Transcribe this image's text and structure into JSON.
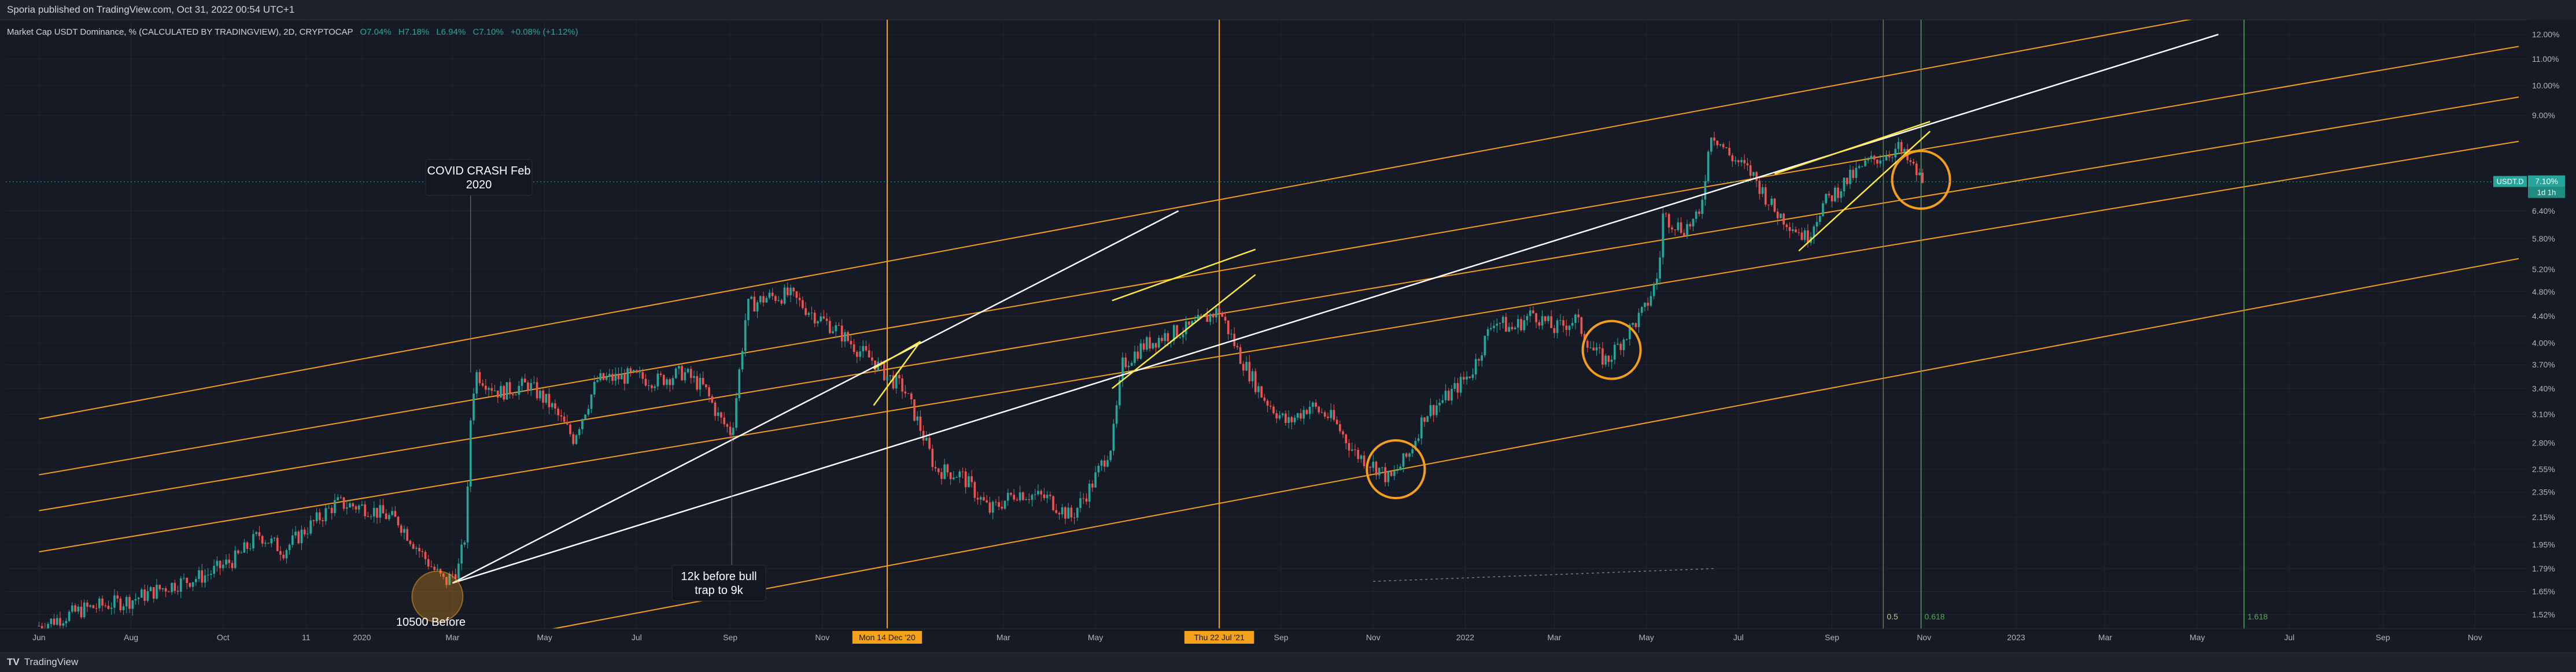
{
  "header": {
    "publisher_line": "Sporia published on TradingView.com, Oct 31, 2022 00:54 UTC+1"
  },
  "legend": {
    "symbol": "Market Cap USDT Dominance, % (CALCULATED BY TRADINGVIEW), 2D, CRYPTOCAP",
    "open": "O7.04%",
    "high": "H7.18%",
    "low": "L6.94%",
    "close": "C7.10%",
    "change": "+0.08% (+1.12%)"
  },
  "footer": {
    "logo_text": "TradingView"
  },
  "colors": {
    "background": "#161a25",
    "grid": "#21252f",
    "up": "#26a69a",
    "down": "#ef5350",
    "channel": "#f59e1b",
    "trendline": "#ffffff",
    "wedge": "#ffeb3b",
    "circle": "#f59e1b",
    "marker_vertical": "#f5a21a",
    "fib_line": "#4caf50",
    "fib_text": "#4caf50",
    "price_tag": "#26a69a"
  },
  "chart_data": {
    "type": "candlestick",
    "x_axis": {
      "labels": [
        "Jun",
        "Aug",
        "Oct",
        "11",
        "2020",
        "Mar",
        "May",
        "Jul",
        "Sep",
        "Nov",
        "Mar",
        "May",
        "Sep",
        "Nov",
        "2022",
        "Mar",
        "May",
        "Jul",
        "Sep",
        "Nov",
        "2023",
        "Mar",
        "May",
        "Jul",
        "Sep",
        "Nov"
      ],
      "highlighted": [
        "Mon 14 Dec '20",
        "Thu 22 Jul '21"
      ]
    },
    "y_axis": {
      "scale": "log",
      "unit": "%",
      "ticks": [
        1.52,
        1.65,
        1.79,
        1.95,
        2.15,
        2.35,
        2.55,
        2.8,
        3.1,
        3.4,
        3.7,
        4.0,
        4.4,
        4.8,
        5.2,
        5.8,
        6.4,
        9.0,
        10.0,
        11.0,
        12.0
      ],
      "tick_labels": [
        "1.52%",
        "1.65%",
        "1.79%",
        "1.95%",
        "2.15%",
        "2.35%",
        "2.55%",
        "2.80%",
        "3.10%",
        "3.40%",
        "3.70%",
        "4.00%",
        "4.40%",
        "4.80%",
        "5.20%",
        "5.80%",
        "6.40%",
        "9.00%",
        "10.00%",
        "11.00%",
        "12.00%"
      ]
    },
    "price_path": [
      [
        "2019-06-01",
        1.46
      ],
      [
        "2019-07-01",
        1.55
      ],
      [
        "2019-08-01",
        1.6
      ],
      [
        "2019-08-25",
        1.68
      ],
      [
        "2019-09-20",
        1.75
      ],
      [
        "2019-10-10",
        1.86
      ],
      [
        "2019-10-25",
        2.02
      ],
      [
        "2019-11-10",
        1.91
      ],
      [
        "2019-11-25",
        2.06
      ],
      [
        "2019-12-15",
        2.26
      ],
      [
        "2020-01-05",
        2.22
      ],
      [
        "2020-01-25",
        2.12
      ],
      [
        "2020-02-10",
        1.88
      ],
      [
        "2020-02-25",
        1.7
      ],
      [
        "2020-03-05",
        1.8
      ],
      [
        "2020-03-10",
        2.05
      ],
      [
        "2020-03-13",
        3.05
      ],
      [
        "2020-03-16",
        3.6
      ],
      [
        "2020-04-01",
        3.35
      ],
      [
        "2020-04-20",
        3.45
      ],
      [
        "2020-05-05",
        3.2
      ],
      [
        "2020-05-20",
        2.85
      ],
      [
        "2020-06-05",
        3.5
      ],
      [
        "2020-06-25",
        3.55
      ],
      [
        "2020-07-15",
        3.5
      ],
      [
        "2020-08-01",
        3.6
      ],
      [
        "2020-08-15",
        3.4
      ],
      [
        "2020-08-25",
        3.05
      ],
      [
        "2020-09-02",
        2.9
      ],
      [
        "2020-09-06",
        3.45
      ],
      [
        "2020-09-12",
        4.55
      ],
      [
        "2020-09-25",
        4.7
      ],
      [
        "2020-10-10",
        4.75
      ],
      [
        "2020-10-25",
        4.45
      ],
      [
        "2020-11-10",
        4.2
      ],
      [
        "2020-11-25",
        3.9
      ],
      [
        "2020-12-05",
        3.75
      ],
      [
        "2020-12-14",
        3.55
      ],
      [
        "2020-12-25",
        3.4
      ],
      [
        "2021-01-05",
        2.95
      ],
      [
        "2021-01-15",
        2.55
      ],
      [
        "2021-02-01",
        2.5
      ],
      [
        "2021-02-20",
        2.2
      ],
      [
        "2021-03-10",
        2.35
      ],
      [
        "2021-03-30",
        2.3
      ],
      [
        "2021-04-15",
        2.15
      ],
      [
        "2021-04-28",
        2.4
      ],
      [
        "2021-05-12",
        2.8
      ],
      [
        "2021-05-19",
        3.7
      ],
      [
        "2021-06-01",
        3.95
      ],
      [
        "2021-06-15",
        4.1
      ],
      [
        "2021-07-01",
        4.2
      ],
      [
        "2021-07-22",
        4.5
      ],
      [
        "2021-08-05",
        3.8
      ],
      [
        "2021-08-20",
        3.3
      ],
      [
        "2021-09-05",
        3.0
      ],
      [
        "2021-09-20",
        3.2
      ],
      [
        "2021-10-05",
        3.05
      ],
      [
        "2021-10-20",
        2.7
      ],
      [
        "2021-11-05",
        2.55
      ],
      [
        "2021-11-12",
        2.45
      ],
      [
        "2021-11-25",
        2.7
      ],
      [
        "2021-12-05",
        3.1
      ],
      [
        "2021-12-20",
        3.3
      ],
      [
        "2022-01-05",
        3.6
      ],
      [
        "2022-01-20",
        4.35
      ],
      [
        "2022-02-01",
        4.2
      ],
      [
        "2022-02-15",
        4.45
      ],
      [
        "2022-03-01",
        4.2
      ],
      [
        "2022-03-15",
        4.35
      ],
      [
        "2022-03-28",
        3.85
      ],
      [
        "2022-04-05",
        3.75
      ],
      [
        "2022-04-15",
        4.05
      ],
      [
        "2022-04-30",
        4.5
      ],
      [
        "2022-05-09",
        5.1
      ],
      [
        "2022-05-12",
        6.3
      ],
      [
        "2022-05-25",
        6.0
      ],
      [
        "2022-06-05",
        6.25
      ],
      [
        "2022-06-13",
        8.5
      ],
      [
        "2022-06-25",
        7.8
      ],
      [
        "2022-07-10",
        7.3
      ],
      [
        "2022-07-25",
        6.4
      ],
      [
        "2022-08-05",
        6.1
      ],
      [
        "2022-08-15",
        5.8
      ],
      [
        "2022-08-25",
        6.5
      ],
      [
        "2022-09-10",
        7.1
      ],
      [
        "2022-09-25",
        7.6
      ],
      [
        "2022-10-05",
        7.8
      ],
      [
        "2022-10-15",
        8.0
      ],
      [
        "2022-10-22",
        7.6
      ],
      [
        "2022-10-31",
        7.1
      ]
    ],
    "current_value": 7.1,
    "current_label": "7.10%",
    "current_countdown": "1d 1h",
    "symbol_tag": "USDT.D",
    "annotations": [
      {
        "text": "COVID CRASH Feb 2020"
      },
      {
        "text": "12k before bull trap to 9k"
      },
      {
        "text": "10500 Before"
      }
    ],
    "fib_labels": [
      "0.5",
      "0.618",
      "1.618"
    ],
    "channel_lines": [
      [
        [
          "2019-06-01",
          3.05
        ],
        [
          "2023-05-15",
          12.9
        ]
      ],
      [
        [
          "2019-06-01",
          2.5
        ],
        [
          "2023-11-30",
          11.5
        ]
      ],
      [
        [
          "2019-06-01",
          2.2
        ],
        [
          "2023-11-30",
          9.6
        ]
      ],
      [
        [
          "2019-06-01",
          1.9
        ],
        [
          "2023-11-30",
          8.2
        ]
      ],
      [
        [
          "2020-03-01",
          1.35
        ],
        [
          "2023-11-30",
          5.4
        ]
      ]
    ],
    "trend_lines": [
      [
        [
          "2020-03-01",
          1.7
        ],
        [
          "2021-06-25",
          6.4
        ]
      ],
      [
        [
          "2020-03-01",
          1.7
        ],
        [
          "2023-05-15",
          12.0
        ]
      ]
    ],
    "wedge_lines": [
      [
        [
          "2020-12-05",
          3.65
        ],
        [
          "2021-01-05",
          4.02
        ]
      ],
      [
        [
          "2020-12-05",
          3.2
        ],
        [
          "2021-01-05",
          4.02
        ]
      ],
      [
        [
          "2021-05-12",
          4.65
        ],
        [
          "2021-08-15",
          5.58
        ]
      ],
      [
        [
          "2021-05-12",
          3.4
        ],
        [
          "2021-08-15",
          5.1
        ]
      ],
      [
        [
          "2022-07-25",
          7.3
        ],
        [
          "2022-11-05",
          8.8
        ]
      ],
      [
        [
          "2022-08-10",
          5.55
        ],
        [
          "2022-11-05",
          8.5
        ]
      ]
    ],
    "circles": [
      [
        "2021-11-16",
        2.55
      ],
      [
        "2022-04-08",
        3.9
      ],
      [
        "2022-10-30",
        7.15
      ]
    ],
    "vertical_markers": [
      "2020-12-14",
      "2021-07-22"
    ],
    "fib_lines": [
      "2022-10-05",
      "2022-10-30",
      "2023-06-01"
    ],
    "dotted_projection": [
      [
        "2021-11-01",
        1.71
      ],
      [
        "2022-06-15",
        1.79
      ]
    ]
  }
}
